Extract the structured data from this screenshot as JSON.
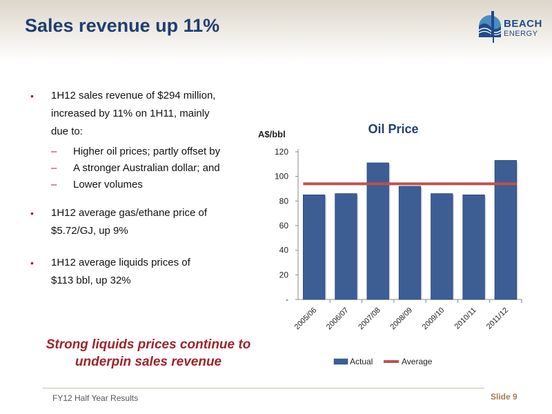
{
  "slide": {
    "title": "Sales revenue up 11%",
    "footer_left": "FY12 Half Year Results",
    "footer_right": "Slide 9",
    "tagline_line1": "Strong liquids prices continue to",
    "tagline_line2": "underpin sales revenue"
  },
  "logo": {
    "line1": "BEACH",
    "line2": "ENERGY"
  },
  "bullets": [
    {
      "text_lines": [
        "1H12 sales revenue of $294 million,",
        "increased by 11% on 1H11, mainly",
        "due to:"
      ],
      "subitems": [
        "Higher oil prices; partly offset by",
        "A stronger Australian dollar; and",
        "Lower volumes"
      ]
    },
    {
      "text_lines": [
        "1H12 average gas/ethane price of",
        "$5.72/GJ, up 9%"
      ]
    },
    {
      "text_lines": [
        "1H12 average liquids prices of",
        "$113 bbl, up 32%"
      ]
    }
  ],
  "colors": {
    "title": "#1f3e73",
    "accent": "#a0232c",
    "bar": "#3c5e95",
    "average_line": "#c0504d"
  },
  "chart_data": {
    "type": "bar",
    "title": "Oil Price",
    "ylabel": "A$/bbl",
    "categories": [
      "2005/06",
      "2006/07",
      "2007/08",
      "2008/09",
      "2009/10",
      "2010/11",
      "2011/12"
    ],
    "series": [
      {
        "name": "Actual",
        "type": "bar",
        "values": [
          85,
          86,
          111,
          92,
          86,
          85,
          113
        ]
      },
      {
        "name": "Average",
        "type": "line",
        "values": [
          94,
          94,
          94,
          94,
          94,
          94,
          94
        ]
      }
    ],
    "yticks": [
      "-",
      "20",
      "40",
      "60",
      "80",
      "100",
      "120"
    ],
    "ylim": [
      0,
      120
    ],
    "grid": false,
    "legend": "bottom"
  }
}
